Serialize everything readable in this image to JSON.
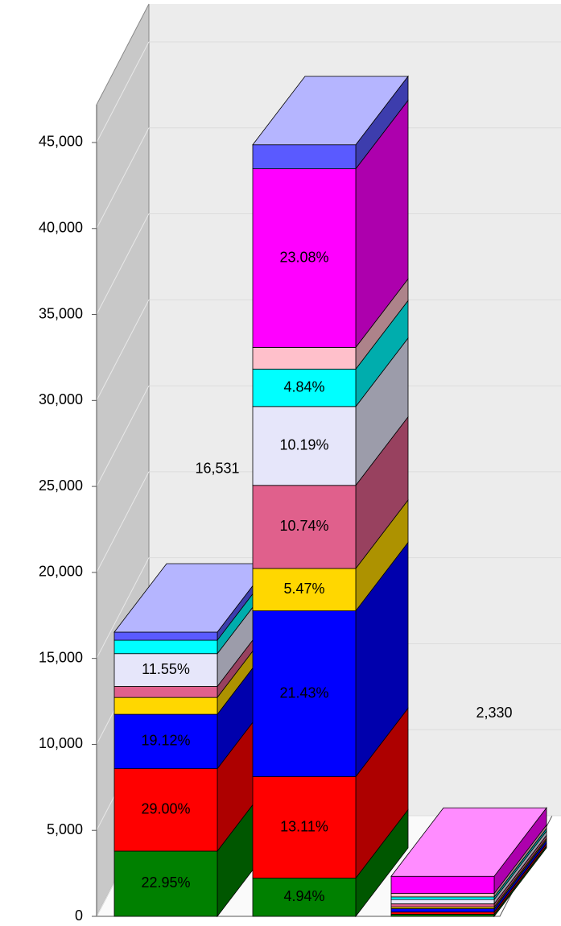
{
  "chart_data": {
    "type": "bar3d_stacked",
    "categories": [
      null,
      null,
      null
    ],
    "series": [
      {
        "color": "#008000",
        "values": [
          3794,
          2223,
          120
        ],
        "percent_labels": [
          "22.95%",
          "4.94%",
          null
        ]
      },
      {
        "color": "#ff0000",
        "values": [
          4794,
          5900,
          130
        ],
        "percent_labels": [
          "29.00%",
          "13.11%",
          null
        ]
      },
      {
        "color": "#0000ff",
        "values": [
          3161,
          9644,
          200
        ],
        "percent_labels": [
          "19.12%",
          "21.43%",
          null
        ]
      },
      {
        "color": "#ffd700",
        "values": [
          980,
          2462,
          100
        ],
        "percent_labels": [
          null,
          "5.47%",
          null
        ]
      },
      {
        "color": "#e0608c",
        "values": [
          640,
          4833,
          180
        ],
        "percent_labels": [
          null,
          "10.74%",
          null
        ]
      },
      {
        "color": "#e6e6fa",
        "values": [
          1909,
          4586,
          250
        ],
        "percent_labels": [
          "11.55%",
          "10.19%",
          null
        ]
      },
      {
        "color": "#00ffff",
        "values": [
          780,
          2178,
          150
        ],
        "percent_labels": [
          null,
          "4.84%",
          null
        ]
      },
      {
        "color": "#ffc0cb",
        "values": [
          0,
          1260,
          200
        ],
        "percent_labels": [
          null,
          null,
          null
        ]
      },
      {
        "color": "#ff00ff",
        "values": [
          0,
          10386,
          1000
        ],
        "percent_labels": [
          null,
          "23.08%",
          null
        ]
      },
      {
        "color": "#5a5aff",
        "values": [
          473,
          1400,
          0
        ],
        "percent_labels": [
          null,
          null,
          null
        ]
      }
    ],
    "totals": [
      16531,
      null,
      2330
    ],
    "total_labels": [
      "16,531",
      null,
      "2,330"
    ],
    "ylim": [
      0,
      47200
    ],
    "yticks": [
      0,
      {
        "value": 5000,
        "label": "5,000"
      },
      {
        "value": 10000,
        "label": "10,000"
      },
      {
        "value": 15000,
        "label": "15,000"
      },
      {
        "value": 20000,
        "label": "20,000"
      },
      {
        "value": 25000,
        "label": "25,000"
      },
      {
        "value": 30000,
        "label": "30,000"
      },
      {
        "value": 35000,
        "label": "35,000"
      },
      {
        "value": 40000,
        "label": "40,000"
      },
      {
        "value": 45000,
        "label": "45,000"
      }
    ],
    "grid": true
  }
}
